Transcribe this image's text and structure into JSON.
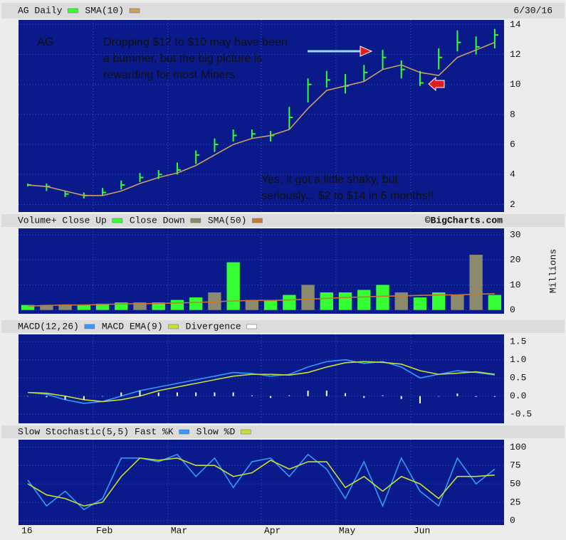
{
  "chart_data": [
    {
      "type": "ohlc",
      "date": "6/30/16",
      "ylim": [
        1.5,
        14.3
      ],
      "yticks": [
        2,
        4,
        6,
        8,
        10,
        12,
        14
      ],
      "grid": true,
      "annotations": [
        {
          "lines": [
            "AG"
          ],
          "color": "#ff6fc0"
        },
        {
          "lines": [
            "Dropping $12 to $10 may have been",
            "a bummer, but the big picture is",
            "rewarding for most Miners"
          ],
          "color": "#ff7fc8"
        },
        {
          "lines": [
            "Yes, it got a little shaky, but",
            "seriously... $2 to $14 in 6 months!!"
          ],
          "color": "#ffff55"
        }
      ],
      "series": [
        {
          "name": "AG Daily",
          "type": "ohlc",
          "color": "#33ff33",
          "values": [
            3.3,
            3.2,
            2.7,
            2.6,
            2.8,
            3.3,
            3.8,
            4.0,
            4.3,
            5.3,
            6.0,
            6.6,
            6.7,
            6.6,
            7.8,
            10.0,
            10.3,
            9.9,
            10.8,
            11.8,
            11.0,
            10.1,
            11.8,
            12.8,
            12.5,
            13.3
          ],
          "high": [
            3.4,
            3.4,
            2.9,
            2.8,
            3.1,
            3.6,
            4.1,
            4.3,
            4.8,
            5.6,
            6.4,
            7.0,
            7.0,
            6.9,
            8.5,
            10.4,
            10.9,
            10.7,
            11.3,
            12.3,
            11.6,
            10.9,
            12.4,
            13.6,
            13.2,
            13.7
          ],
          "low": [
            3.2,
            2.9,
            2.5,
            2.4,
            2.6,
            3.0,
            3.5,
            3.7,
            4.0,
            4.7,
            5.5,
            6.2,
            6.4,
            6.2,
            7.0,
            8.8,
            9.8,
            9.4,
            10.2,
            11.0,
            10.4,
            9.9,
            11.0,
            12.2,
            12.0,
            12.4
          ]
        },
        {
          "name": "SMA(10)",
          "type": "line",
          "color": "#c8a064",
          "values": [
            3.3,
            3.2,
            2.9,
            2.6,
            2.6,
            2.9,
            3.4,
            3.8,
            4.1,
            4.6,
            5.3,
            6.0,
            6.4,
            6.6,
            7.0,
            8.4,
            9.6,
            9.9,
            10.2,
            11.0,
            11.3,
            10.8,
            10.6,
            11.8,
            12.3,
            12.8
          ]
        }
      ]
    },
    {
      "type": "bar",
      "credit": "©BigCharts.com",
      "ylabel": "Millions",
      "ylim": [
        -1.5,
        32.5
      ],
      "yticks": [
        0,
        10,
        20,
        30
      ],
      "grid": true,
      "series": [
        {
          "name": "Volume+ Close Up",
          "type": "bar",
          "color": "#33ff33",
          "values": [
            2,
            null,
            null,
            2,
            2.5,
            3,
            null,
            3,
            4,
            5,
            null,
            19,
            null,
            4,
            6,
            null,
            7,
            7,
            8,
            10,
            null,
            5,
            7,
            null,
            null,
            6
          ]
        },
        {
          "name": "Close Down",
          "type": "bar",
          "color": "#8c8a6c",
          "values": [
            null,
            2,
            2,
            null,
            null,
            null,
            3,
            null,
            null,
            null,
            7,
            null,
            4,
            null,
            null,
            10,
            null,
            null,
            null,
            null,
            7,
            null,
            null,
            6,
            22,
            null
          ]
        },
        {
          "name": "SMA(50)",
          "type": "line",
          "color": "#c87832",
          "values": [
            1.5,
            1.8,
            2,
            2,
            2.2,
            2.4,
            2.5,
            2.6,
            2.8,
            3,
            3.3,
            3.6,
            3.8,
            3.8,
            4.0,
            4.3,
            4.6,
            5.0,
            5.2,
            5.5,
            5.6,
            5.8,
            6.0,
            6.0,
            6.3,
            6.5
          ]
        }
      ]
    },
    {
      "type": "line",
      "ylim": [
        -0.75,
        1.7
      ],
      "yticks": [
        1.5,
        {
          "value": 1,
          "label": "1.0"
        },
        0.5,
        {
          "value": 0,
          "label": "0.0"
        },
        -0.5
      ],
      "grid": true,
      "series": [
        {
          "name": "MACD(12,26)",
          "type": "line",
          "color": "#3399ff",
          "values": [
            0.1,
            0.05,
            -0.1,
            -0.2,
            -0.15,
            0.0,
            0.15,
            0.25,
            0.35,
            0.45,
            0.55,
            0.65,
            0.62,
            0.55,
            0.6,
            0.8,
            0.95,
            1.0,
            0.9,
            0.95,
            0.8,
            0.5,
            0.6,
            0.7,
            0.65,
            0.58
          ]
        },
        {
          "name": "MACD EMA(9)",
          "type": "line",
          "color": "#c8e030",
          "values": [
            0.1,
            0.08,
            0.0,
            -0.1,
            -0.15,
            -0.1,
            0.0,
            0.15,
            0.25,
            0.35,
            0.45,
            0.55,
            0.6,
            0.6,
            0.58,
            0.65,
            0.8,
            0.92,
            0.95,
            0.93,
            0.88,
            0.7,
            0.6,
            0.63,
            0.67,
            0.6
          ]
        },
        {
          "name": "Divergence",
          "type": "bar",
          "color": "#ffffff",
          "values": [
            0,
            -0.03,
            -0.1,
            -0.1,
            0,
            0.1,
            0.15,
            0.1,
            0.1,
            0.1,
            0.1,
            0.1,
            0.02,
            -0.05,
            0.02,
            0.15,
            0.15,
            0.08,
            -0.05,
            0.02,
            -0.08,
            -0.2,
            0,
            0.07,
            -0.02,
            -0.02
          ]
        }
      ]
    },
    {
      "type": "line",
      "title": "Slow Stochastic(5,5)",
      "ylim": [
        -6,
        110
      ],
      "yticks": [
        0,
        25,
        50,
        75,
        100
      ],
      "grid": true,
      "categories": [
        "16",
        null,
        null,
        null,
        "Feb",
        null,
        null,
        null,
        "Mar",
        null,
        null,
        null,
        null,
        "Apr",
        null,
        null,
        null,
        "May",
        null,
        null,
        null,
        "Jun",
        null,
        null,
        null,
        null
      ],
      "series": [
        {
          "name": "Fast %K",
          "type": "line",
          "color": "#3399ff",
          "values": [
            55,
            20,
            40,
            15,
            30,
            85,
            85,
            80,
            90,
            60,
            85,
            45,
            80,
            85,
            60,
            90,
            70,
            30,
            80,
            20,
            85,
            40,
            20,
            85,
            50,
            70
          ]
        },
        {
          "name": "Slow %D",
          "type": "line",
          "color": "#c8e030",
          "values": [
            50,
            35,
            30,
            20,
            25,
            60,
            85,
            82,
            85,
            75,
            75,
            60,
            65,
            82,
            70,
            80,
            80,
            45,
            60,
            40,
            60,
            50,
            30,
            60,
            60,
            62
          ]
        }
      ]
    }
  ]
}
